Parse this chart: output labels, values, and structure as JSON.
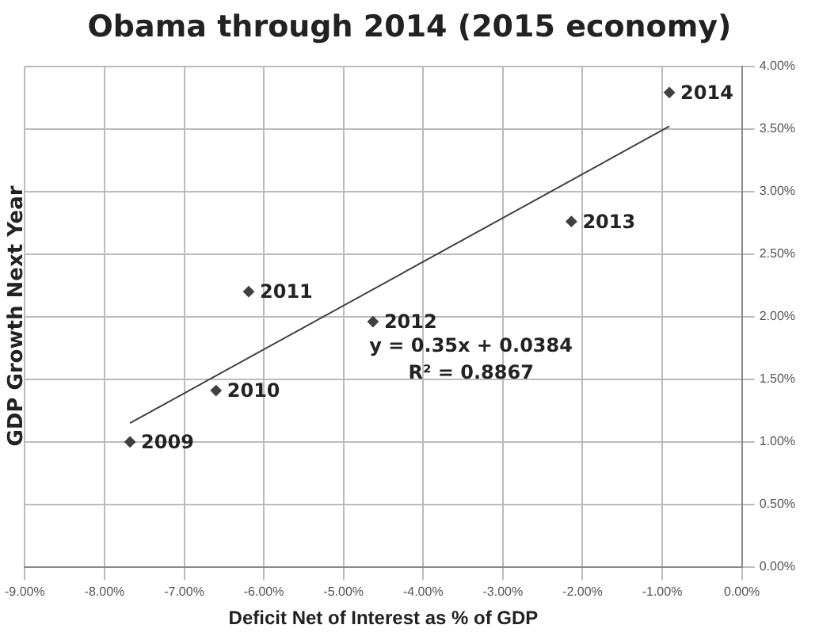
{
  "chart_data": {
    "type": "scatter",
    "title": "Obama through 2014 (2015 economy)",
    "xlabel": "Deficit Net of Interest as % of GDP",
    "ylabel": "GDP Growth Next Year",
    "series": [
      {
        "color": "#404040",
        "x": [
          -7.68,
          -6.6,
          -6.19,
          -4.63,
          -2.14,
          -0.91
        ],
        "values": [
          1.0,
          1.41,
          2.2,
          1.96,
          2.76,
          3.79
        ]
      },
      {
        "type": "line",
        "marker": "none",
        "color": "#404040",
        "x": [
          -7.68,
          -0.91
        ],
        "values": [
          1.15,
          3.52
        ]
      }
    ],
    "xlim": [
      -9,
      0
    ],
    "ylim": [
      0,
      4
    ],
    "xticks": [
      {
        "value": -9,
        "label": "-9.00%"
      },
      {
        "value": -8,
        "label": "-8.00%"
      },
      {
        "value": -7,
        "label": "-7.00%"
      },
      {
        "value": -6,
        "label": "-6.00%"
      },
      {
        "value": -5,
        "label": "-5.00%"
      },
      {
        "value": -4,
        "label": "-4.00%"
      },
      {
        "value": -3,
        "label": "-3.00%"
      },
      {
        "value": -2,
        "label": "-2.00%"
      },
      {
        "value": -1,
        "label": "-1.00%"
      },
      {
        "value": 0,
        "label": "0.00%"
      }
    ],
    "yticks": [
      {
        "value": 0,
        "label": "0.00%"
      },
      {
        "value": 0.5,
        "label": "0.50%"
      },
      {
        "value": 1,
        "label": "1.00%"
      },
      {
        "value": 1.5,
        "label": "1.50%"
      },
      {
        "value": 2,
        "label": "2.00%"
      },
      {
        "value": 2.5,
        "label": "2.50%"
      },
      {
        "value": 3,
        "label": "3.00%"
      },
      {
        "value": 3.5,
        "label": "3.50%"
      },
      {
        "value": 4,
        "label": "4.00%"
      }
    ],
    "annotations": [
      {
        "text": "2009",
        "x": -7.68,
        "y": 1.0
      },
      {
        "text": "2010",
        "x": -6.6,
        "y": 1.41
      },
      {
        "text": "2011",
        "x": -6.19,
        "y": 2.2
      },
      {
        "text": "2012",
        "x": -4.63,
        "y": 1.96
      },
      {
        "text": "2013",
        "x": -2.14,
        "y": 2.76
      },
      {
        "text": "2014",
        "x": -0.91,
        "y": 3.79
      },
      "y = 0.35x + 0.0384",
      "R² = 0.8867"
    ],
    "grid": true,
    "legend": false,
    "marker": "diamond"
  }
}
